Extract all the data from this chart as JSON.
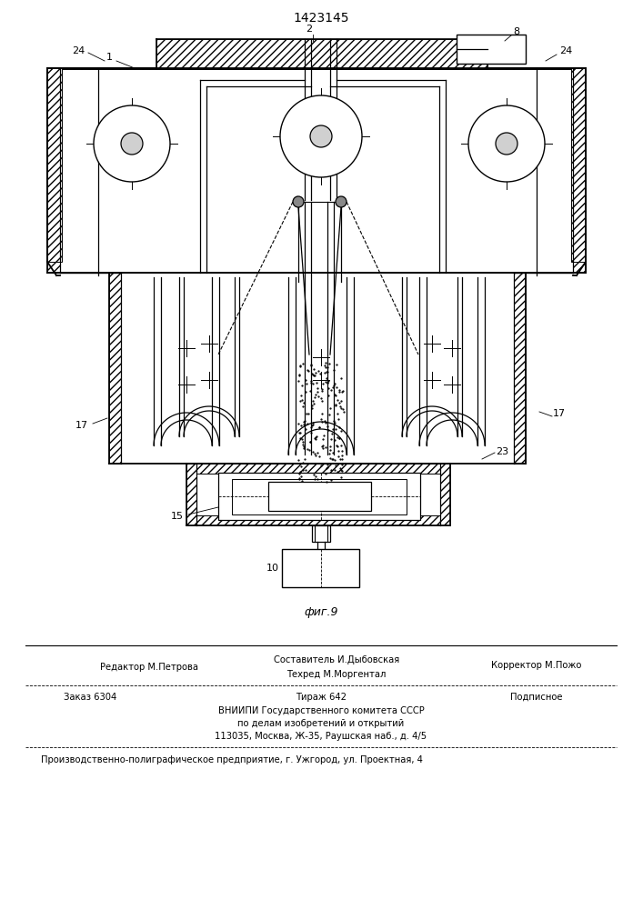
{
  "patent_number": "1423145",
  "fig_label": "фиг.9",
  "background": "#ffffff",
  "line_color": "#000000",
  "footer": {
    "sostavitel": "Составитель И.Дыбовская",
    "tehred": "Техред М.Моргентал",
    "korrektor": "Корректор М.Пожо",
    "redaktor": "Редактор М.Петрова",
    "zakaz": "Заказ 6304",
    "tirazh": "Тираж 642",
    "podpisnoe": "Подписное",
    "vniipи": "ВНИИПИ Государственного комитета СССР",
    "po_delam": "по делам изобретений и открытий",
    "address": "113035, Москва, Ж-35, Раушская наб., д. 4/5",
    "predpriyatie": "Производственно-полиграфическое предприятие, г. Ужгород, ул. Проектная, 4"
  }
}
